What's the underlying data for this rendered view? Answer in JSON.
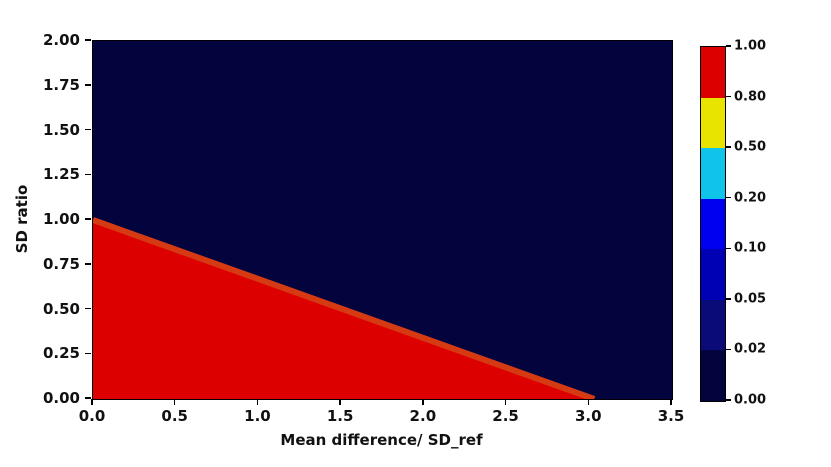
{
  "chart_data": {
    "type": "heatmap",
    "title": "",
    "xlabel": "Mean difference/ SD_ref",
    "ylabel": "SD ratio",
    "xlim": [
      0.0,
      3.5
    ],
    "ylim": [
      0.0,
      2.0
    ],
    "xticks": [
      0.0,
      0.5,
      1.0,
      1.5,
      2.0,
      2.5,
      3.0,
      3.5
    ],
    "xtick_labels": [
      "0.0",
      "0.5",
      "1.0",
      "1.5",
      "2.0",
      "2.5",
      "3.0",
      "3.5"
    ],
    "yticks": [
      0.0,
      0.25,
      0.5,
      0.75,
      1.0,
      1.25,
      1.5,
      1.75,
      2.0
    ],
    "ytick_labels": [
      "0.00",
      "0.25",
      "0.50",
      "0.75",
      "1.00",
      "1.25",
      "1.50",
      "1.75",
      "2.00"
    ],
    "grid": false,
    "regions": {
      "description": "Filled contour: value 1.0 (red) in the triangular region below the boundary line, value 0.0 (dark navy) elsewhere",
      "high_region": {
        "value": 1.0,
        "color": "#dd0000",
        "polygon_xy": [
          [
            0.0,
            1.0
          ],
          [
            3.03,
            0.0
          ],
          [
            0.0,
            0.0
          ]
        ]
      },
      "low_region": {
        "value": 0.0,
        "color": "#03043e"
      }
    },
    "boundary_line": {
      "x": [
        0.0,
        3.03
      ],
      "y": [
        1.0,
        0.0
      ],
      "color": "#d63a12",
      "width": 6
    },
    "colorbar": {
      "levels": [
        0.0,
        0.02,
        0.05,
        0.1,
        0.2,
        0.5,
        0.8,
        1.0
      ],
      "tick_labels": [
        "0.00",
        "0.02",
        "0.05",
        "0.10",
        "0.20",
        "0.50",
        "0.80",
        "1.00"
      ],
      "segment_colors_bottom_to_top": [
        "#03043e",
        "#0a0a78",
        "#0000b4",
        "#0000f0",
        "#0fc4e8",
        "#e8e400",
        "#dd0000"
      ],
      "position": "right"
    }
  }
}
